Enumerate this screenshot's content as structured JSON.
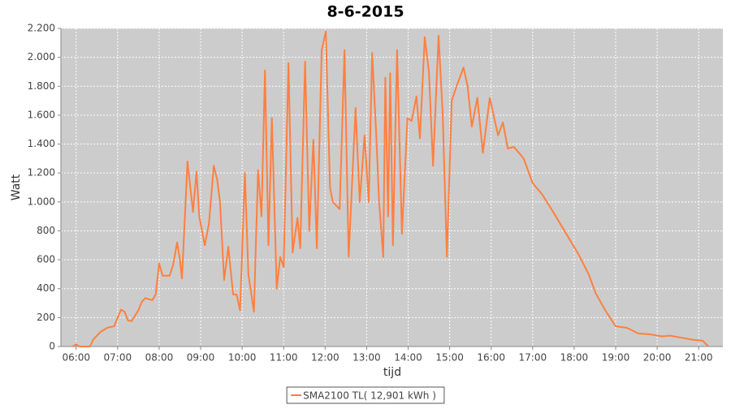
{
  "chart_data": {
    "type": "line",
    "title": "8-6-2015",
    "x_label": "tijd",
    "y_label": "Watt",
    "xlim": [
      "05:38",
      "21:35"
    ],
    "xticks": [
      "06:00",
      "07:00",
      "08:00",
      "09:00",
      "10:00",
      "11:00",
      "12:00",
      "13:00",
      "14:00",
      "15:00",
      "16:00",
      "17:00",
      "18:00",
      "19:00",
      "20:00",
      "21:00"
    ],
    "ylim": [
      0,
      2200
    ],
    "yticks": [
      0,
      200,
      400,
      600,
      800,
      {
        "value": 1000,
        "label": "1.000"
      },
      {
        "value": 1200,
        "label": "1.200"
      },
      {
        "value": 1400,
        "label": "1.400"
      },
      {
        "value": 1600,
        "label": "1.600"
      },
      {
        "value": 1800,
        "label": "1.800"
      },
      {
        "value": 2000,
        "label": "2.000"
      },
      {
        "value": 2200,
        "label": "2.200"
      }
    ],
    "grid": true,
    "x": [
      "05:55",
      "06:00",
      "06:05",
      "06:20",
      "06:25",
      "06:35",
      "06:45",
      "06:55",
      "07:00",
      "07:05",
      "07:10",
      "07:15",
      "07:20",
      "07:30",
      "07:35",
      "07:40",
      "07:50",
      "07:55",
      "08:00",
      "08:05",
      "08:15",
      "08:20",
      "08:26",
      "08:30",
      "08:33",
      "08:41",
      "08:49",
      "08:54",
      "08:58",
      "09:06",
      "09:12",
      "09:19",
      "09:24",
      "09:28",
      "09:34",
      "09:40",
      "09:44",
      "09:47",
      "09:52",
      "09:57",
      "10:04",
      "10:09",
      "10:17",
      "10:23",
      "10:28",
      "10:33",
      "10:38",
      "10:43",
      "10:50",
      "10:55",
      "11:00",
      "11:07",
      "11:13",
      "11:20",
      "11:24",
      "11:31",
      "11:37",
      "11:43",
      "11:48",
      "11:55",
      "12:01",
      "12:07",
      "12:11",
      "12:21",
      "12:28",
      "12:34",
      "12:44",
      "12:50",
      "12:57",
      "13:03",
      "13:08",
      "13:14",
      "13:18",
      "13:24",
      "13:27",
      "13:31",
      "13:34",
      "13:38",
      "13:44",
      "13:51",
      "13:59",
      "14:05",
      "14:12",
      "14:17",
      "14:24",
      "14:30",
      "14:36",
      "14:44",
      "14:50",
      "14:56",
      "15:03",
      "15:10",
      "15:14",
      "15:20",
      "15:26",
      "15:32",
      "15:40",
      "15:48",
      "15:58",
      "16:10",
      "16:17",
      "16:24",
      "16:33",
      "16:47",
      "17:00",
      "17:14",
      "17:31",
      "17:46",
      "18:06",
      "18:21",
      "18:31",
      "18:45",
      "19:00",
      "19:16",
      "19:33",
      "19:49",
      "20:07",
      "20:19",
      "20:36",
      "20:54",
      "21:06",
      "21:14"
    ],
    "series": [
      {
        "name": "SMA2100 TL( 12,901 kWh )",
        "color": "#ff7f3f",
        "values": [
          0,
          15,
          0,
          0,
          50,
          100,
          130,
          140,
          200,
          255,
          240,
          180,
          175,
          250,
          310,
          335,
          320,
          360,
          575,
          490,
          490,
          560,
          720,
          600,
          470,
          1280,
          930,
          1210,
          900,
          700,
          850,
          1250,
          1150,
          1000,
          460,
          690,
          500,
          360,
          360,
          250,
          1200,
          500,
          240,
          1220,
          900,
          1910,
          700,
          1580,
          400,
          620,
          550,
          1960,
          650,
          890,
          680,
          1970,
          800,
          1430,
          680,
          2050,
          2180,
          1100,
          1000,
          950,
          2050,
          620,
          1650,
          1000,
          1460,
          1000,
          2030,
          1450,
          1000,
          620,
          1860,
          900,
          1890,
          700,
          2050,
          780,
          1580,
          1560,
          1730,
          1440,
          2140,
          1900,
          1250,
          2150,
          1600,
          620,
          1700,
          1800,
          1850,
          1930,
          1800,
          1520,
          1720,
          1340,
          1720,
          1460,
          1550,
          1370,
          1380,
          1300,
          1130,
          1050,
          920,
          800,
          640,
          500,
          370,
          250,
          140,
          130,
          90,
          85,
          70,
          75,
          60,
          45,
          40,
          0
        ]
      }
    ],
    "legend": "bottom"
  }
}
